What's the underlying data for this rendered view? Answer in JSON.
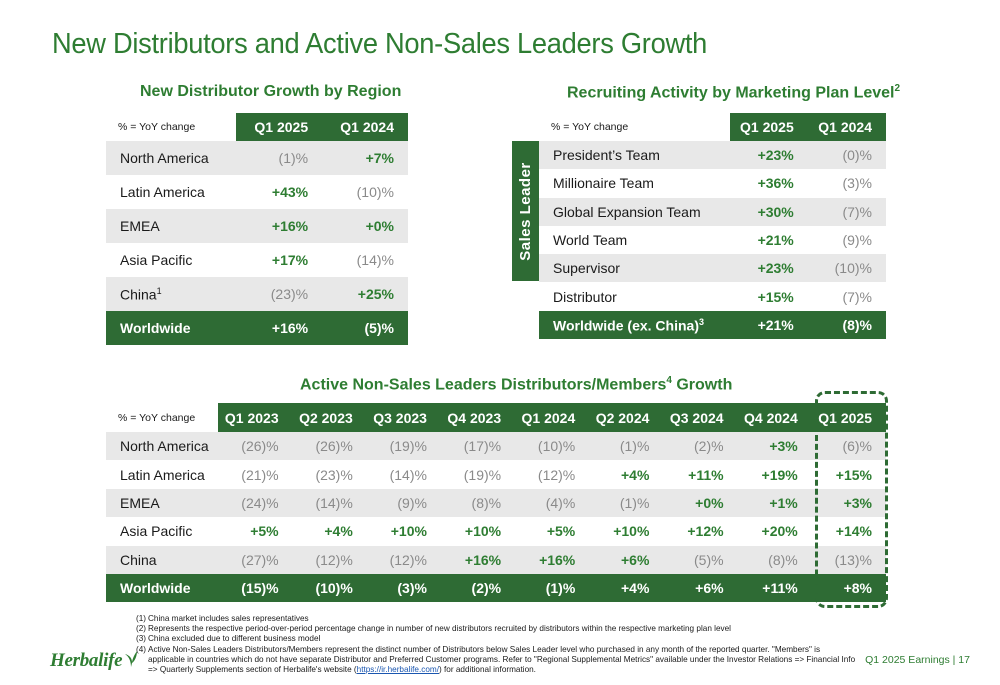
{
  "title": "New Distributors and Active Non-Sales Leaders Growth",
  "table1": {
    "title": "New Distributor Growth by Region",
    "note": "% = YoY change",
    "columns": [
      "Q1 2025",
      "Q1 2024"
    ],
    "rows": [
      {
        "label": "North America",
        "sup": "",
        "v1": "(1)%",
        "v2": "+7%"
      },
      {
        "label": "Latin America",
        "sup": "",
        "v1": "+43%",
        "v2": "(10)%"
      },
      {
        "label": "EMEA",
        "sup": "",
        "v1": "+16%",
        "v2": "+0%"
      },
      {
        "label": "Asia Pacific",
        "sup": "",
        "v1": "+17%",
        "v2": "(14)%"
      },
      {
        "label": "China",
        "sup": "1",
        "v1": "(23)%",
        "v2": "+25%"
      }
    ],
    "total": {
      "label": "Worldwide",
      "v1": "+16%",
      "v2": "(5)%"
    }
  },
  "table2": {
    "title": "Recruiting Activity by Marketing Plan Level",
    "title_sup": "2",
    "note": "% = YoY change",
    "side_label": "Sales Leader",
    "columns": [
      "Q1 2025",
      "Q1 2024"
    ],
    "rows": [
      {
        "label": "President’s Team",
        "v1": "+23%",
        "v2": "(0)%"
      },
      {
        "label": "Millionaire Team",
        "v1": "+36%",
        "v2": "(3)%"
      },
      {
        "label": "Global Expansion Team",
        "v1": "+30%",
        "v2": "(7)%"
      },
      {
        "label": "World Team",
        "v1": "+21%",
        "v2": "(9)%"
      },
      {
        "label": "Supervisor",
        "v1": "+23%",
        "v2": "(10)%"
      },
      {
        "label": "Distributor",
        "v1": "+15%",
        "v2": "(7)%"
      }
    ],
    "total": {
      "label": "Worldwide (ex. China)",
      "sup": "3",
      "v1": "+21%",
      "v2": "(8)%"
    }
  },
  "table3": {
    "title": "Active Non-Sales Leaders Distributors/Members",
    "title_sup": "4",
    "title_suffix": " Growth",
    "note": "% = YoY change",
    "columns": [
      "Q1 2023",
      "Q2 2023",
      "Q3 2023",
      "Q4 2023",
      "Q1 2024",
      "Q2 2024",
      "Q3 2024",
      "Q4 2024",
      "Q1 2025"
    ],
    "rows": [
      {
        "label": "North America",
        "values": [
          "(26)%",
          "(26)%",
          "(19)%",
          "(17)%",
          "(10)%",
          "(1)%",
          "(2)%",
          "+3%",
          "(6)%"
        ]
      },
      {
        "label": "Latin America",
        "values": [
          "(21)%",
          "(23)%",
          "(14)%",
          "(19)%",
          "(12)%",
          "+4%",
          "+11%",
          "+19%",
          "+15%"
        ]
      },
      {
        "label": "EMEA",
        "values": [
          "(24)%",
          "(14)%",
          "(9)%",
          "(8)%",
          "(4)%",
          "(1)%",
          "+0%",
          "+1%",
          "+3%"
        ]
      },
      {
        "label": "Asia Pacific",
        "values": [
          "+5%",
          "+4%",
          "+10%",
          "+10%",
          "+5%",
          "+10%",
          "+12%",
          "+20%",
          "+14%"
        ]
      },
      {
        "label": "China",
        "values": [
          "(27)%",
          "(12)%",
          "(12)%",
          "+16%",
          "+16%",
          "+6%",
          "(5)%",
          "(8)%",
          "(13)%"
        ]
      }
    ],
    "total": {
      "label": "Worldwide",
      "values": [
        "(15)%",
        "(10)%",
        "(3)%",
        "(2)%",
        "(1)%",
        "+4%",
        "+6%",
        "+11%",
        "+8%"
      ]
    }
  },
  "footnotes": [
    {
      "num": "(1)",
      "text": "China market includes sales representatives"
    },
    {
      "num": "(2)",
      "text": "Represents the respective period-over-period percentage change in number of new distributors recruited by distributors within the respective marketing plan level"
    },
    {
      "num": "(3)",
      "text": "China excluded due to different business model"
    },
    {
      "num": "(4)",
      "text": "Active Non-Sales Leaders Distributors/Members represent the distinct number of Distributors below Sales Leader level who purchased in any month of the reported quarter.  \"Members\" is applicable in countries which do not have separate Distributor and Preferred Customer programs. Refer to \"Regional Supplemental Metrics\" available under the Investor Relations => Financial Info => Quarterly Supplements section of Herbalife's website (",
      "link": "https://ir.herbalife.com/",
      "after": ") for additional information."
    }
  ],
  "footer": {
    "logo": "Herbalife",
    "right": "Q1 2025 Earnings  |  17"
  },
  "colors": {
    "accent": "#2e7d32",
    "header_fill": "#2e6b34",
    "negative_text": "#8a8a8a",
    "row_shade": "#e8e8e8"
  }
}
